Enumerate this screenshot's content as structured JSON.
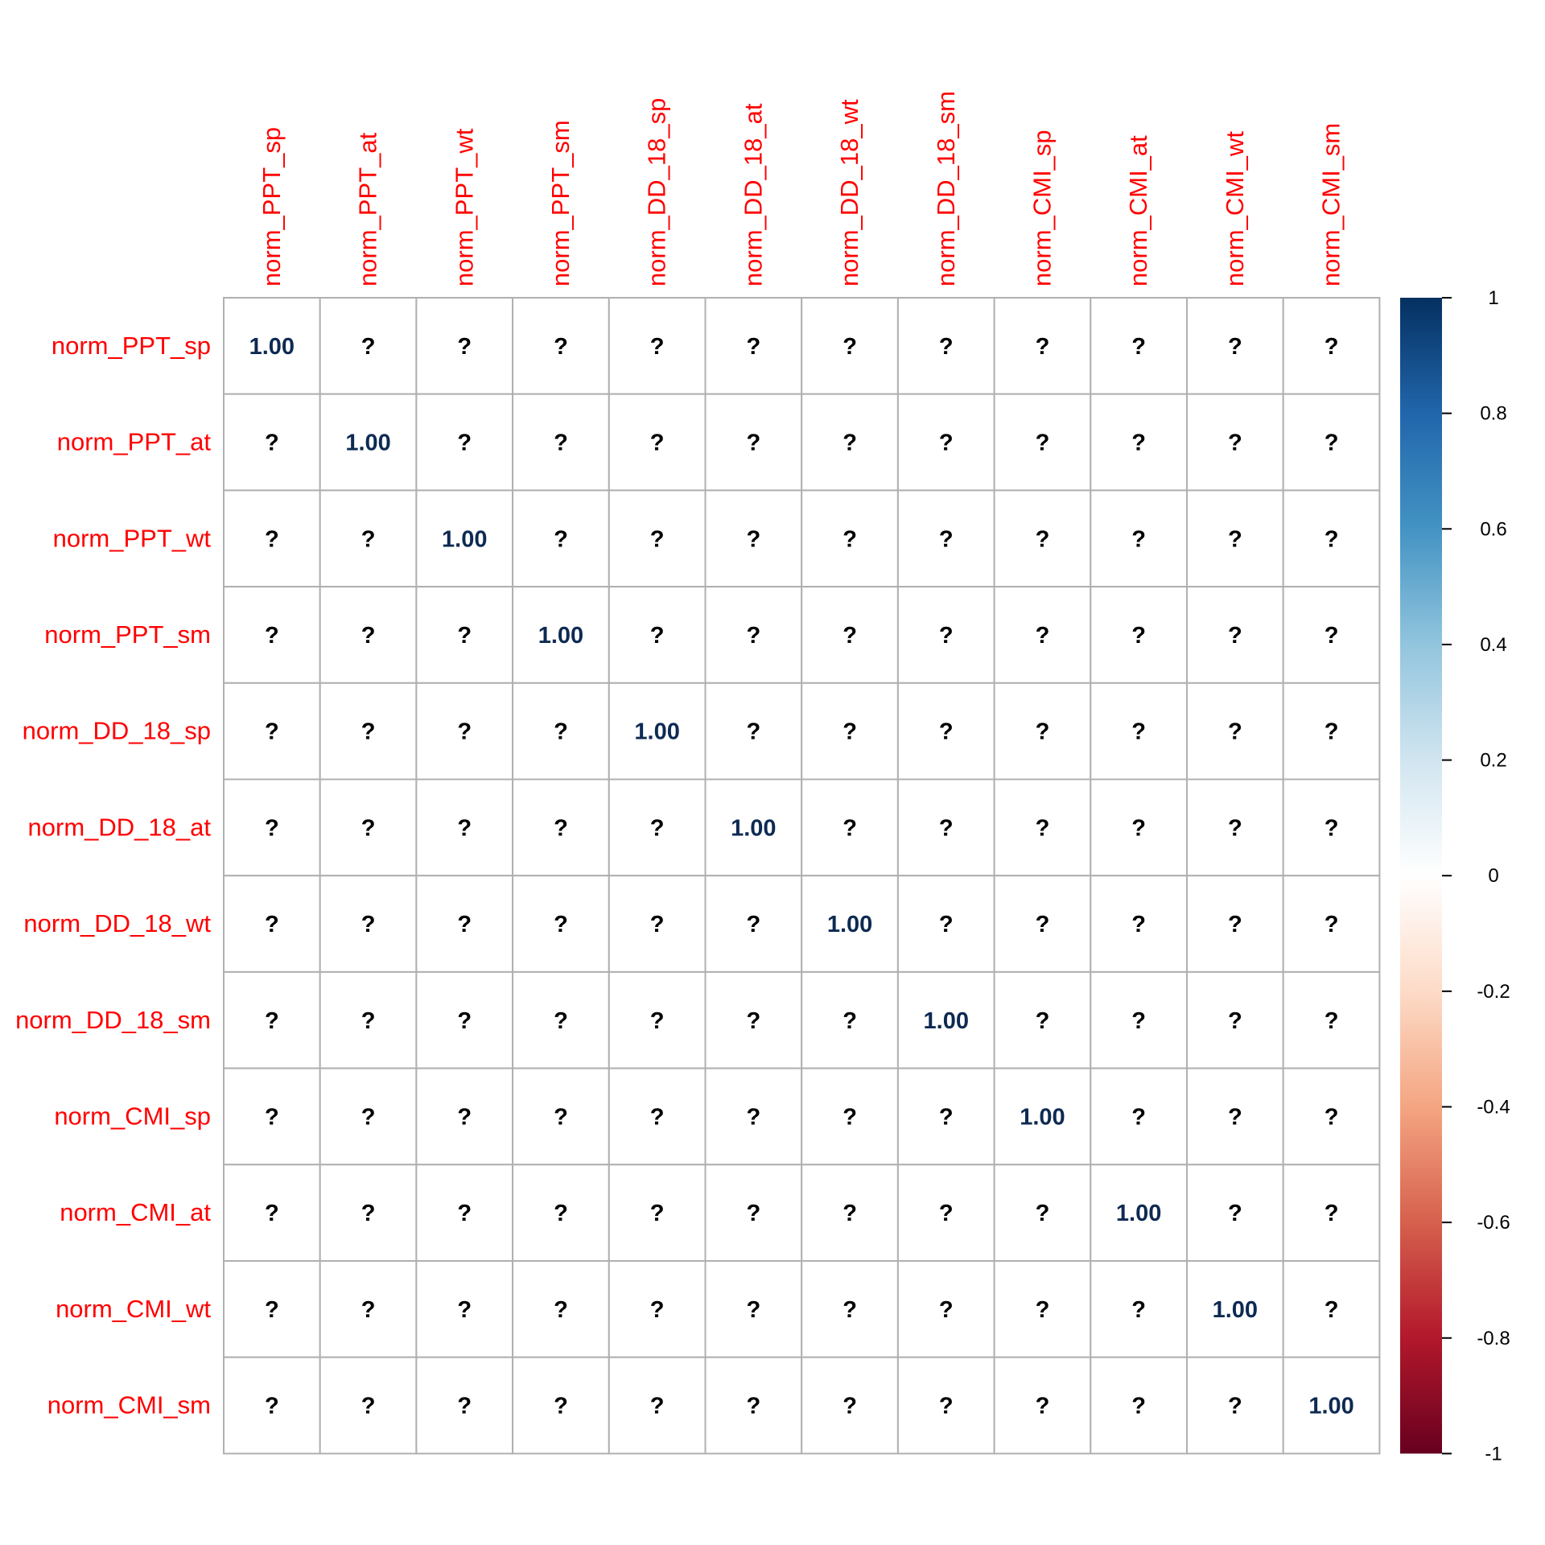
{
  "chart_data": {
    "type": "heatmap",
    "rows": [
      "norm_PPT_sp",
      "norm_PPT_at",
      "norm_PPT_wt",
      "norm_PPT_sm",
      "norm_DD_18_sp",
      "norm_DD_18_at",
      "norm_DD_18_wt",
      "norm_DD_18_sm",
      "norm_CMI_sp",
      "norm_CMI_at",
      "norm_CMI_wt",
      "norm_CMI_sm"
    ],
    "columns": [
      "norm_PPT_sp",
      "norm_PPT_at",
      "norm_PPT_wt",
      "norm_PPT_sm",
      "norm_DD_18_sp",
      "norm_DD_18_at",
      "norm_DD_18_wt",
      "norm_DD_18_sm",
      "norm_CMI_sp",
      "norm_CMI_at",
      "norm_CMI_wt",
      "norm_CMI_sm"
    ],
    "values": [
      [
        1.0,
        null,
        null,
        null,
        null,
        null,
        null,
        null,
        null,
        null,
        null,
        null
      ],
      [
        null,
        1.0,
        null,
        null,
        null,
        null,
        null,
        null,
        null,
        null,
        null,
        null
      ],
      [
        null,
        null,
        1.0,
        null,
        null,
        null,
        null,
        null,
        null,
        null,
        null,
        null
      ],
      [
        null,
        null,
        null,
        1.0,
        null,
        null,
        null,
        null,
        null,
        null,
        null,
        null
      ],
      [
        null,
        null,
        null,
        null,
        1.0,
        null,
        null,
        null,
        null,
        null,
        null,
        null
      ],
      [
        null,
        null,
        null,
        null,
        null,
        1.0,
        null,
        null,
        null,
        null,
        null,
        null
      ],
      [
        null,
        null,
        null,
        null,
        null,
        null,
        1.0,
        null,
        null,
        null,
        null,
        null
      ],
      [
        null,
        null,
        null,
        null,
        null,
        null,
        null,
        1.0,
        null,
        null,
        null,
        null
      ],
      [
        null,
        null,
        null,
        null,
        null,
        null,
        null,
        null,
        1.0,
        null,
        null,
        null
      ],
      [
        null,
        null,
        null,
        null,
        null,
        null,
        null,
        null,
        null,
        1.0,
        null,
        null
      ],
      [
        null,
        null,
        null,
        null,
        null,
        null,
        null,
        null,
        null,
        null,
        1.0,
        null
      ],
      [
        null,
        null,
        null,
        null,
        null,
        null,
        null,
        null,
        null,
        null,
        null,
        1.0
      ]
    ],
    "cell_labels": [
      [
        "1.00",
        "?",
        "?",
        "?",
        "?",
        "?",
        "?",
        "?",
        "?",
        "?",
        "?",
        "?"
      ],
      [
        "?",
        "1.00",
        "?",
        "?",
        "?",
        "?",
        "?",
        "?",
        "?",
        "?",
        "?",
        "?"
      ],
      [
        "?",
        "?",
        "1.00",
        "?",
        "?",
        "?",
        "?",
        "?",
        "?",
        "?",
        "?",
        "?"
      ],
      [
        "?",
        "?",
        "?",
        "1.00",
        "?",
        "?",
        "?",
        "?",
        "?",
        "?",
        "?",
        "?"
      ],
      [
        "?",
        "?",
        "?",
        "?",
        "1.00",
        "?",
        "?",
        "?",
        "?",
        "?",
        "?",
        "?"
      ],
      [
        "?",
        "?",
        "?",
        "?",
        "?",
        "1.00",
        "?",
        "?",
        "?",
        "?",
        "?",
        "?"
      ],
      [
        "?",
        "?",
        "?",
        "?",
        "?",
        "?",
        "1.00",
        "?",
        "?",
        "?",
        "?",
        "?"
      ],
      [
        "?",
        "?",
        "?",
        "?",
        "?",
        "?",
        "?",
        "1.00",
        "?",
        "?",
        "?",
        "?"
      ],
      [
        "?",
        "?",
        "?",
        "?",
        "?",
        "?",
        "?",
        "?",
        "1.00",
        "?",
        "?",
        "?"
      ],
      [
        "?",
        "?",
        "?",
        "?",
        "?",
        "?",
        "?",
        "?",
        "?",
        "1.00",
        "?",
        "?"
      ],
      [
        "?",
        "?",
        "?",
        "?",
        "?",
        "?",
        "?",
        "?",
        "?",
        "?",
        "1.00",
        "?"
      ],
      [
        "?",
        "?",
        "?",
        "?",
        "?",
        "?",
        "?",
        "?",
        "?",
        "?",
        "?",
        "1.00"
      ]
    ],
    "color_range": [
      -1,
      1
    ],
    "legend": {
      "position": "right",
      "ticks": [
        "1",
        "0.8",
        "0.6",
        "0.4",
        "0.2",
        "0",
        "-0.2",
        "-0.4",
        "-0.6",
        "-0.8",
        "-1"
      ],
      "tick_values": [
        1,
        0.8,
        0.6,
        0.4,
        0.2,
        0,
        -0.2,
        -0.4,
        -0.6,
        -0.8,
        -1
      ]
    },
    "colors": {
      "label_color": "#ff0000",
      "grid_color": "#b0b0b0",
      "value_text_color": "#0d2a52",
      "missing_text_color": "#000000",
      "scale_stops": [
        "#67001f",
        "#b2182b",
        "#d6604d",
        "#f4a582",
        "#fddbc7",
        "#ffffff",
        "#d1e5f0",
        "#92c5de",
        "#4393c3",
        "#2166ac",
        "#053061"
      ]
    }
  }
}
